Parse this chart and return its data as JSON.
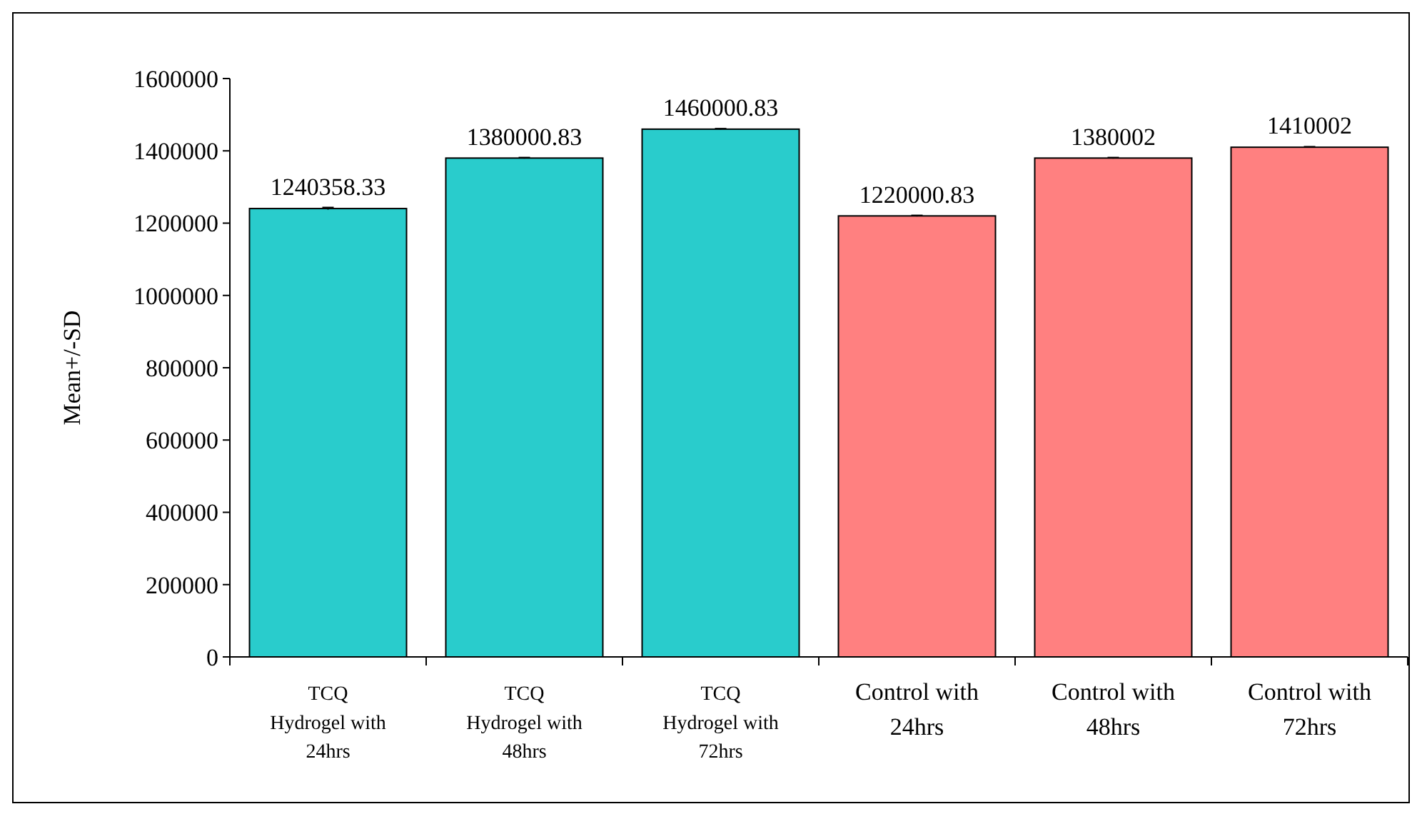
{
  "chart_data": {
    "type": "bar",
    "ylabel": "Mean+/-SD",
    "categories": [
      "TCQ\nHydrogel with\n24hrs",
      "TCQ\nHydrogel with\n48hrs",
      "TCQ\nHydrogel with\n72hrs",
      "Control with\n24hrs",
      "Control with\n48hrs",
      "Control with\n72hrs"
    ],
    "values": [
      1240358.33,
      1380000.83,
      1460000.83,
      1220000.83,
      1380002,
      1410002
    ],
    "errors": [
      3000,
      1500,
      1500,
      1500,
      1500,
      1500
    ],
    "colors": [
      "#29cccc",
      "#29cccc",
      "#29cccc",
      "#ff8080",
      "#ff8080",
      "#ff8080"
    ],
    "data_labels": true,
    "ylim": [
      0,
      1600000
    ],
    "yticks": [
      0,
      200000,
      400000,
      600000,
      800000,
      1000000,
      1200000,
      1400000,
      1600000
    ],
    "grid": false
  }
}
